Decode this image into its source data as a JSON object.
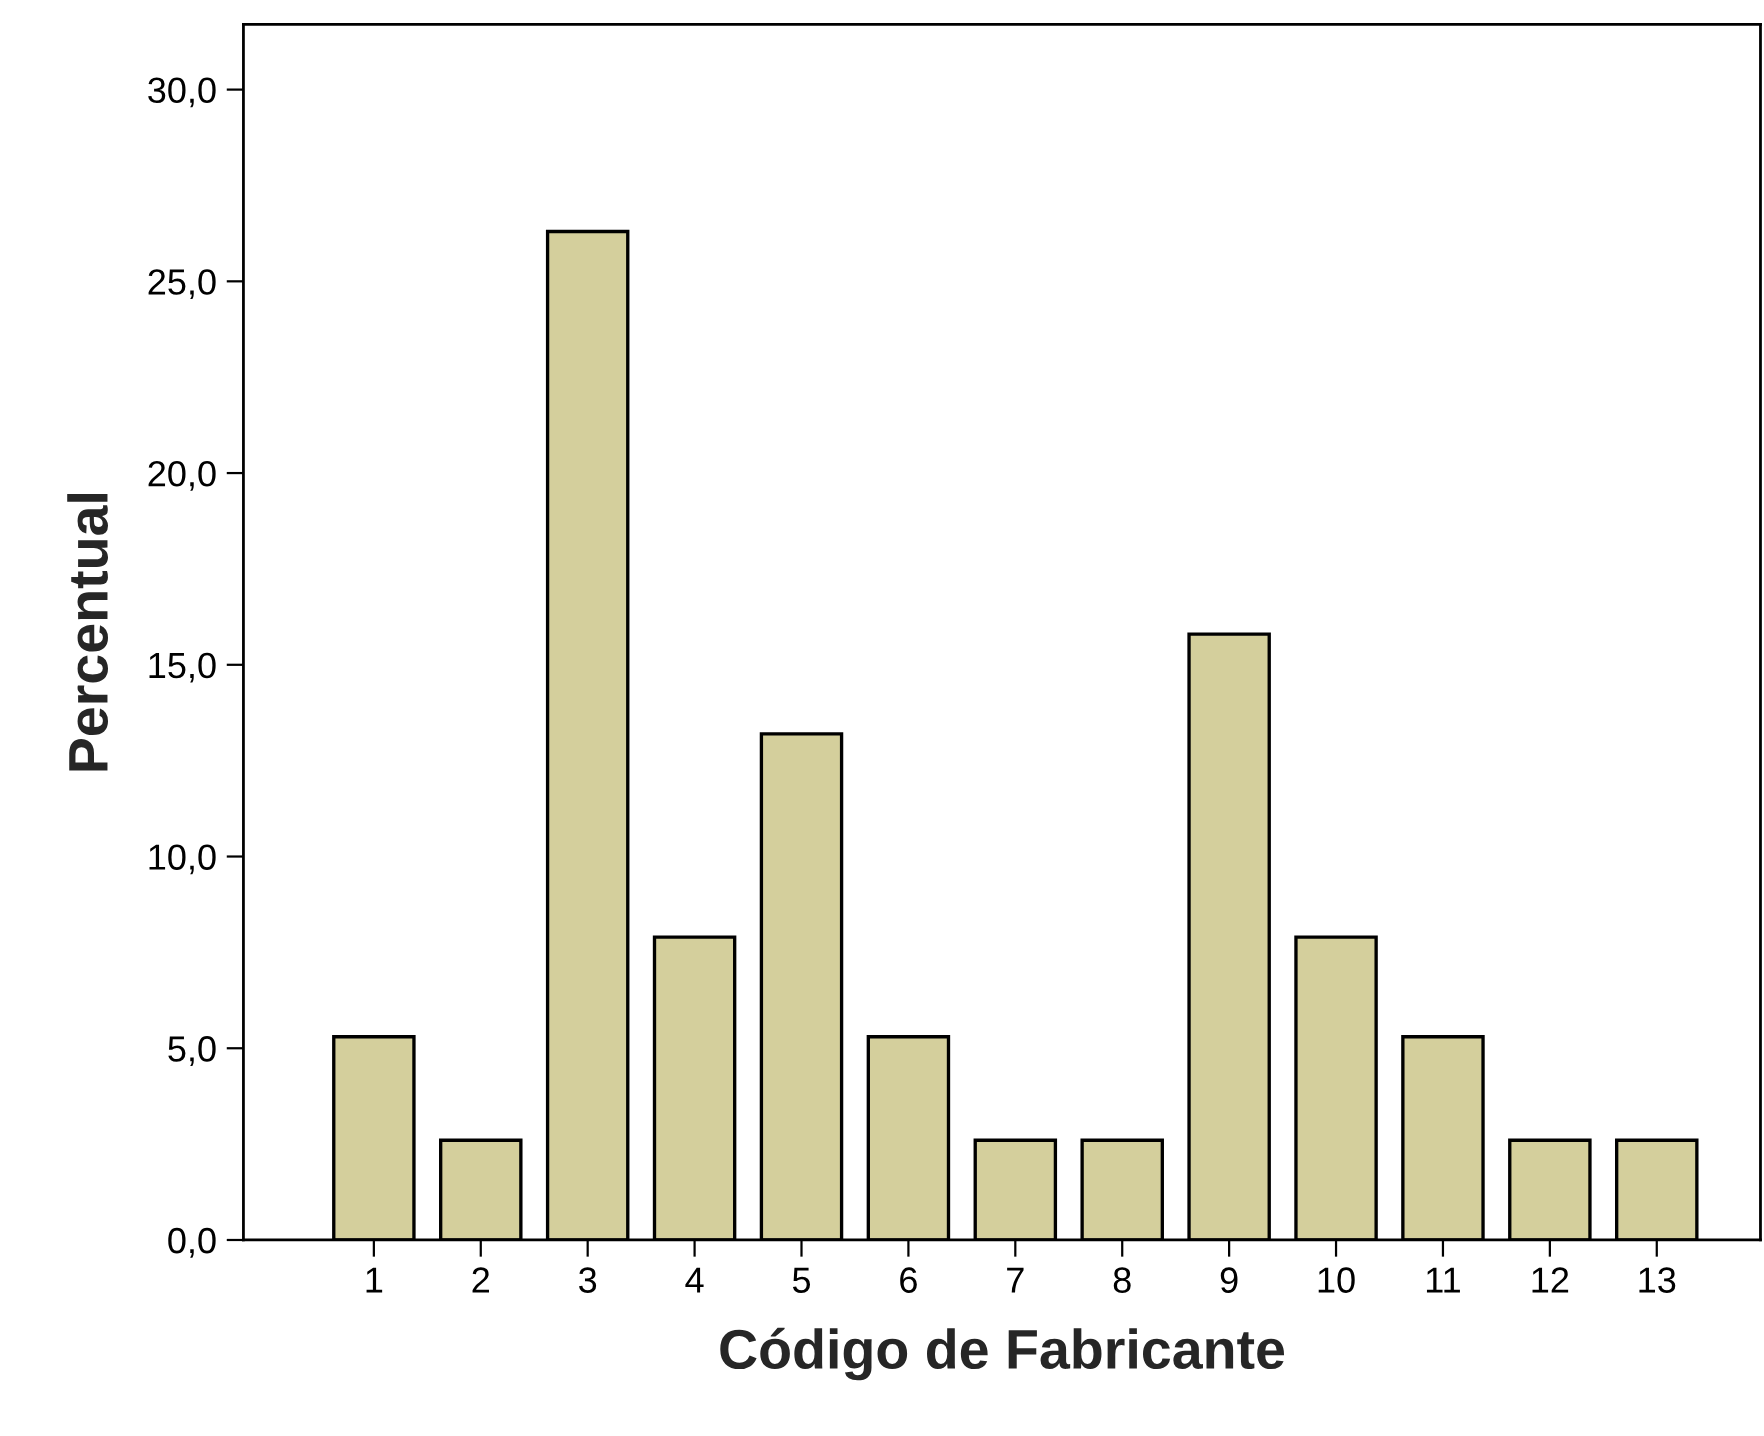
{
  "chart_data": {
    "type": "bar",
    "xlabel": "Código de Fabricante",
    "ylabel": "Percentual",
    "categories": [
      "1",
      "2",
      "3",
      "4",
      "5",
      "6",
      "7",
      "8",
      "9",
      "10",
      "11",
      "12",
      "13"
    ],
    "values": [
      5.3,
      2.6,
      26.3,
      7.9,
      13.2,
      5.3,
      2.6,
      2.6,
      15.8,
      7.9,
      5.3,
      2.6,
      2.6
    ],
    "color": "#d4cf9c",
    "ylim": [
      0,
      31.7
    ],
    "yticks": [
      {
        "value": 0,
        "label": "0,0"
      },
      {
        "value": 5,
        "label": "5,0"
      },
      {
        "value": 10,
        "label": "10,0"
      },
      {
        "value": 15,
        "label": "15,0"
      },
      {
        "value": 20,
        "label": "20,0"
      },
      {
        "value": 25,
        "label": "25,0"
      },
      {
        "value": 30,
        "label": "30,0"
      }
    ],
    "grid": false,
    "legend": false
  }
}
